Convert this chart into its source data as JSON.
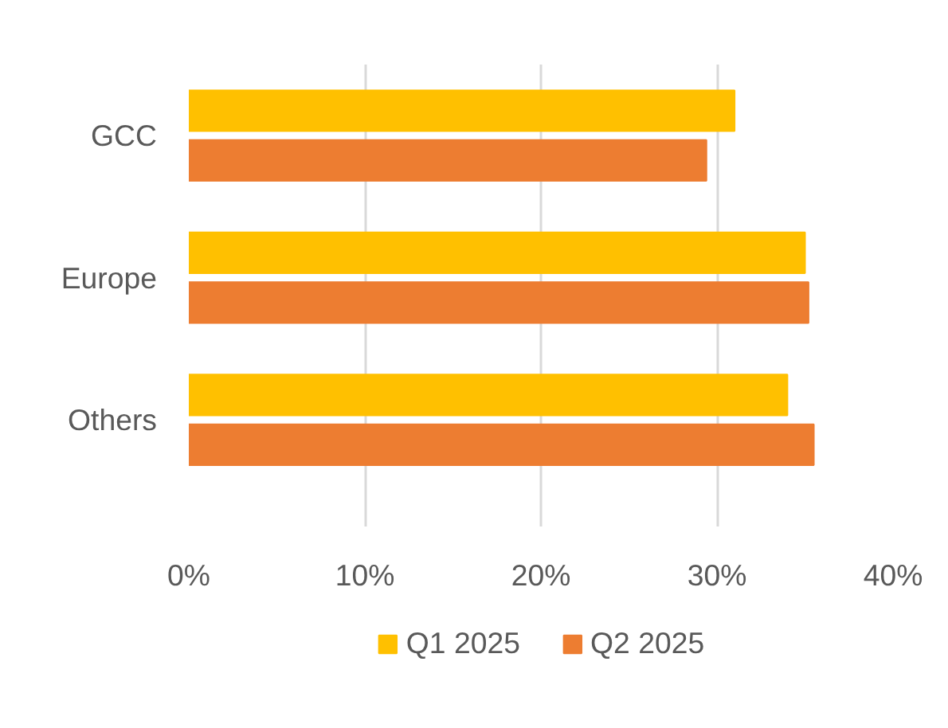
{
  "chart_data": {
    "type": "bar",
    "orientation": "horizontal",
    "categories": [
      "GCC",
      "Europe",
      "Others"
    ],
    "series": [
      {
        "name": "Q1 2025",
        "color": "#ffc000",
        "values": [
          0.31,
          0.35,
          0.34
        ]
      },
      {
        "name": "Q2 2025",
        "color": "#ed7d31",
        "values": [
          0.294,
          0.352,
          0.355
        ]
      }
    ],
    "xlim": [
      0,
      0.4
    ],
    "xticks": [
      {
        "value": 0,
        "label": "0%"
      },
      {
        "value": 0.1,
        "label": "10%"
      },
      {
        "value": 0.2,
        "label": "20%"
      },
      {
        "value": 0.3,
        "label": "30%"
      },
      {
        "value": 0.4,
        "label": "40%"
      }
    ],
    "grid": "x",
    "legend": "bottom"
  }
}
